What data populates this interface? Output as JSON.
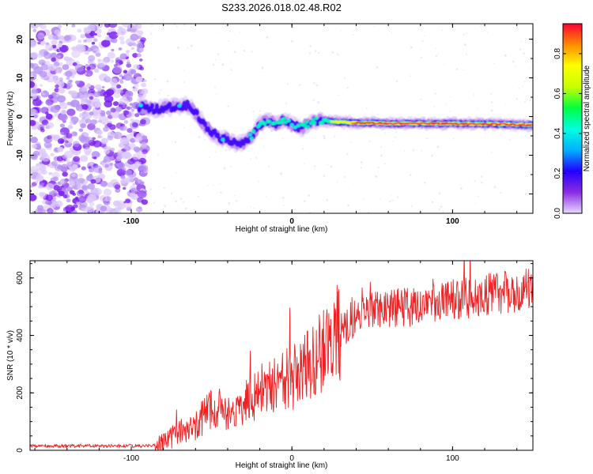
{
  "title": "S233.2026.018.02.48.R02",
  "colors": {
    "snr_line": "#ee2222",
    "colorbar": [
      "#e9d9ff",
      "#8a2be2",
      "#2200ff",
      "#00b0ff",
      "#00ffe0",
      "#00ff40",
      "#c8ff00",
      "#ffff00",
      "#ff8c00",
      "#ff0033"
    ]
  },
  "chart_data": [
    {
      "type": "heatmap",
      "name": "spectrogram",
      "xlabel": "Height of straight line (km)",
      "ylabel": "Frequency (Hz)",
      "xlim": [
        -163,
        150
      ],
      "ylim": [
        -25,
        24
      ],
      "xticks": [
        -100,
        0,
        100
      ],
      "yticks": [
        -20,
        -10,
        0,
        10,
        20
      ],
      "ridge": [
        [
          -95,
          2.5
        ],
        [
          -85,
          2
        ],
        [
          -75,
          2.5
        ],
        [
          -65,
          3
        ],
        [
          -60,
          1
        ],
        [
          -55,
          -2
        ],
        [
          -50,
          -4
        ],
        [
          -45,
          -5.5
        ],
        [
          -40,
          -6
        ],
        [
          -35,
          -7
        ],
        [
          -30,
          -7
        ],
        [
          -25,
          -5
        ],
        [
          -20,
          -2
        ],
        [
          -15,
          -1
        ],
        [
          -10,
          -2
        ],
        [
          -5,
          -1
        ],
        [
          0,
          -2
        ],
        [
          5,
          -3
        ],
        [
          10,
          -2
        ],
        [
          15,
          -1
        ],
        [
          20,
          -1
        ],
        [
          30,
          -1.5
        ],
        [
          60,
          -1.8
        ],
        [
          100,
          -1.8
        ],
        [
          130,
          -2
        ],
        [
          150,
          -2.2
        ]
      ],
      "colorbar": {
        "label": "Normalized spectral amplitude",
        "range": [
          0,
          0.95
        ],
        "ticks": [
          "0.0",
          "0.2",
          "0.4",
          "0.6",
          "0.8"
        ]
      }
    },
    {
      "type": "line",
      "name": "snr",
      "xlabel": "Height of straight line (km)",
      "ylabel": "SNR (10 * v/v)",
      "xlim": [
        -163,
        150
      ],
      "ylim": [
        0,
        660
      ],
      "xticks": [
        -100,
        0,
        100
      ],
      "yticks": [
        0,
        200,
        400,
        600
      ],
      "series": [
        {
          "name": "SNR",
          "x": [
            -163,
            -140,
            -120,
            -100,
            -90,
            -85,
            -80,
            -75,
            -70,
            -65,
            -60,
            -55,
            -50,
            -45,
            -40,
            -35,
            -30,
            -25,
            -20,
            -15,
            -10,
            -5,
            0,
            5,
            10,
            15,
            20,
            25,
            30,
            35,
            40,
            50,
            60,
            70,
            80,
            90,
            100,
            110,
            120,
            130,
            140,
            150
          ],
          "values": [
            15,
            15,
            15,
            15,
            15,
            20,
            30,
            45,
            60,
            75,
            90,
            115,
            140,
            150,
            130,
            145,
            160,
            190,
            200,
            220,
            230,
            245,
            250,
            270,
            300,
            320,
            350,
            380,
            410,
            440,
            470,
            490,
            495,
            500,
            500,
            510,
            520,
            530,
            540,
            550,
            555,
            560
          ]
        }
      ]
    }
  ]
}
